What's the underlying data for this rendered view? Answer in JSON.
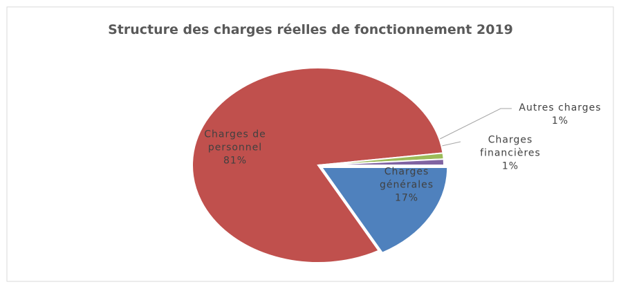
{
  "chart_data": {
    "type": "pie",
    "title": "Structure des charges réelles de fonctionnement 2019",
    "categories": [
      "Charges générales",
      "Charges de personnel",
      "Autres charges",
      "Charges financières"
    ],
    "values": [
      17,
      81,
      1,
      1
    ],
    "value_labels": [
      "17%",
      "81%",
      "1%",
      "1%"
    ],
    "colors": [
      "#4f81bd",
      "#c0504d",
      "#9bbb59",
      "#8064a2"
    ]
  }
}
